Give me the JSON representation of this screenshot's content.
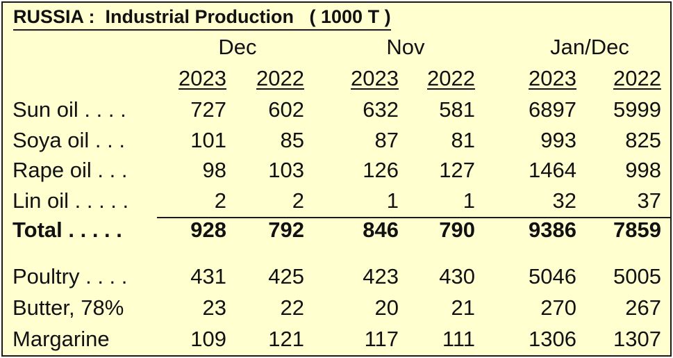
{
  "title": "RUSSIA :  Industrial Production   ( 1000 T )",
  "groups": [
    "Dec",
    "Nov",
    "Jan/Dec"
  ],
  "years": [
    "2023",
    "2022",
    "2023",
    "2022",
    "2023",
    "2022"
  ],
  "rows": [
    {
      "label": "Sun oil",
      "dots": " . . . .",
      "values": [
        "727",
        "602",
        "632",
        "581",
        "6897",
        "5999"
      ]
    },
    {
      "label": "Soya oil",
      "dots": " . . .",
      "values": [
        "101",
        "85",
        "87",
        "81",
        "993",
        "825"
      ]
    },
    {
      "label": "Rape oil",
      "dots": " . . .",
      "values": [
        "98",
        "103",
        "126",
        "127",
        "1464",
        "998"
      ]
    },
    {
      "label": "Lin oil",
      "dots": " . . . . .",
      "values": [
        "2",
        "2",
        "1",
        "1",
        "32",
        "37"
      ]
    },
    {
      "label": "Total",
      "dots": " . . . . .",
      "values": [
        "928",
        "792",
        "846",
        "790",
        "9386",
        "7859"
      ]
    },
    {
      "label": "Poultry",
      "dots": " . . . .",
      "values": [
        "431",
        "425",
        "423",
        "430",
        "5046",
        "5005"
      ]
    },
    {
      "label": "Butter, 78%",
      "dots": "",
      "values": [
        "23",
        "22",
        "20",
        "21",
        "270",
        "267"
      ]
    },
    {
      "label": "Margarine",
      "dots": "",
      "values": [
        "109",
        "121",
        "117",
        "111",
        "1306",
        "1307"
      ]
    }
  ]
}
